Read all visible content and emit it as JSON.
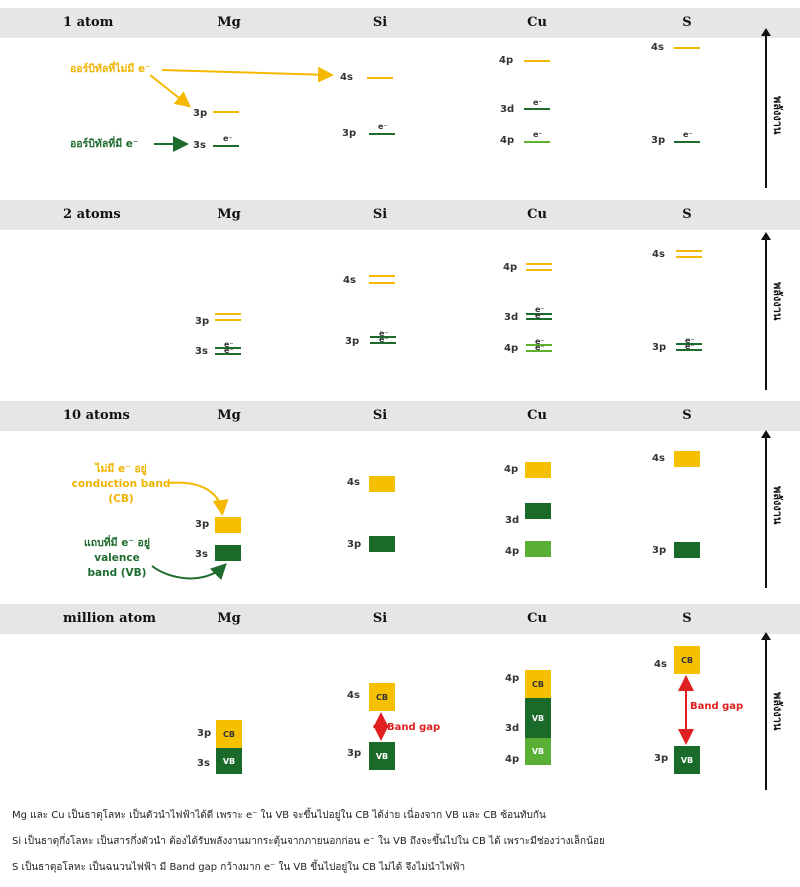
{
  "sections": [
    {
      "title": "1 atom",
      "cols": [
        "Mg",
        "Si",
        "Cu",
        "S"
      ]
    },
    {
      "title": "2 atoms",
      "cols": [
        "Mg",
        "Si",
        "Cu",
        "S"
      ]
    },
    {
      "title": "10 atoms",
      "cols": [
        "Mg",
        "Si",
        "Cu",
        "S"
      ]
    },
    {
      "title": "million atom",
      "cols": [
        "Mg",
        "Si",
        "Cu",
        "S"
      ]
    }
  ],
  "orbitals": {
    "s3": "3s",
    "p3": "3p",
    "s4": "4s",
    "p4": "4p",
    "d3": "3d"
  },
  "electron": "e⁻",
  "energy_label": "พลังงาน",
  "annotations": {
    "empty_orbital": "ออร์บิทัลที่ไม่มี e⁻",
    "filled_orbital": "ออร์บิทัลที่มี e⁻",
    "cb_line1": "ไม่มี e⁻ อยู่",
    "cb_line2": "conduction band",
    "cb_line3": "(CB)",
    "vb_line1": "แถบที่มี e⁻ อยู่",
    "vb_line2": "valence",
    "vb_line3": "band (VB)"
  },
  "band_labels": {
    "cb": "CB",
    "vb": "VB",
    "gap": "Band gap"
  },
  "footer": [
    "Mg  และ Cu เป็นธาตุโลหะ เป็นตัวนำไฟฟ้าได้ดี เพราะ e⁻ ใน VB จะขึ้นไปอยู่ใน CB ได้ง่าย เนื่องจาก VB และ CB ซ้อนทับกัน",
    "Si เป็นธาตุกึ่งโลหะ เป็นสารกึ่งตัวนำ ต้องได้รับพลังงานมากระตุ้นจากภายนอกก่อน e⁻ ใน VB ถึงจะขึ้นไปใน CB ได้ เพราะมีช่องว่างเล็กน้อย",
    "S เป็นธาตุอโลหะ เป็นฉนวนไฟฟ้า มี Band gap กว้างมาก e⁻ ใน VB ขึ้นไปอยู่ใน CB ไม่ได้ จึงไม่นำไฟฟ้า"
  ],
  "colors": {
    "empty": "#f5b800",
    "filled": "#1e6b2e",
    "light": "#5bb030",
    "gap": "#e02020"
  }
}
